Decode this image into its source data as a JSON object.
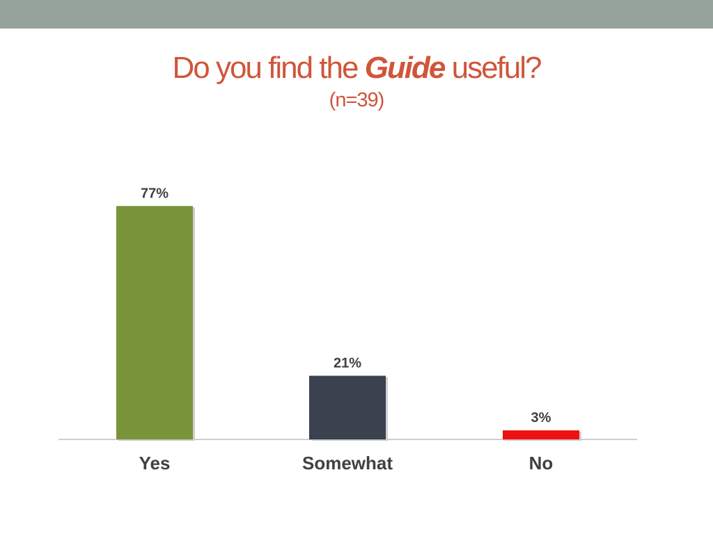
{
  "slide": {
    "band_color": "#95a39b",
    "title_color": "#d0553a",
    "title_part1": "Do you find the",
    "title_emph": "Guide",
    "title_part2": "useful?",
    "subtitle": "(n=39)"
  },
  "chart_data": {
    "type": "bar",
    "categories": [
      "Yes",
      "Somewhat",
      "No"
    ],
    "values": [
      77,
      21,
      3
    ],
    "labels": [
      "77%",
      "21%",
      "3%"
    ],
    "colors": [
      "#7a943a",
      "#39424e",
      "#ee1111"
    ],
    "ylim": [
      0,
      100
    ],
    "grid": false,
    "legend": "none"
  }
}
